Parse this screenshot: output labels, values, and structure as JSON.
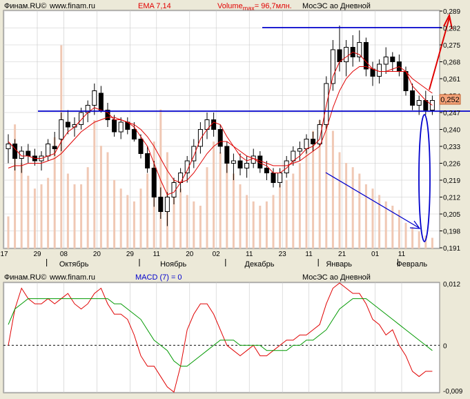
{
  "header": {
    "source": "Финам.RU©",
    "site": "www.finam.ru",
    "ema": "EMA 7,14",
    "volume_prefix": "Volume",
    "volume_sub": "max",
    "volume_suffix": "= 96,7млн.",
    "instrument": "МосЭС ао Дневной"
  },
  "macd_header": {
    "source": "Финам.RU©",
    "site": "www.finam.ru",
    "macd": "MACD (7) = 0",
    "instrument": "МосЭС ао Дневной"
  },
  "colors": {
    "background": "#ffffff",
    "frame": "#ece9d8",
    "grid": "#c8c8c8",
    "candle_up": "#ffffff",
    "candle_down": "#000000",
    "ema": "#e00000",
    "volume": "#f0c8b4",
    "annotation_blue": "#0000cc",
    "annotation_red": "#e00000",
    "macd_line": "#e00000",
    "signal_line": "#009900",
    "price_tag": "#f4a37a"
  },
  "chart_data": [
    {
      "type": "candlestick",
      "title": "МосЭС ао Дневной",
      "ylim": [
        0.191,
        0.289
      ],
      "y_ticks": [
        "0,289",
        "0,282",
        "0,275",
        "0,268",
        "0,261",
        "0,254",
        "0,247",
        "0,240",
        "0,233",
        "0,226",
        "0,219",
        "0,212",
        "0,205",
        "0,198",
        "0,191"
      ],
      "x_day_ticks": [
        "17",
        "29",
        "08",
        "20",
        "29",
        "11",
        "20",
        "02",
        "11",
        "23",
        "11",
        "21",
        "01",
        "11"
      ],
      "x_month_labels": [
        "Октябрь",
        "Ноябрь",
        "Декабрь",
        "Январь",
        "Февраль"
      ],
      "last_price": "0,252",
      "series": [
        {
          "name": "EMA 7",
          "values": [
            0.235,
            0.232,
            0.229,
            0.229,
            0.228,
            0.228,
            0.229,
            0.23,
            0.235,
            0.239,
            0.241,
            0.244,
            0.247,
            0.249,
            0.248,
            0.247,
            0.244,
            0.244,
            0.243,
            0.241,
            0.237,
            0.233,
            0.226,
            0.219,
            0.213,
            0.214,
            0.218,
            0.223,
            0.229,
            0.236,
            0.24,
            0.243,
            0.242,
            0.237,
            0.233,
            0.229,
            0.227,
            0.228,
            0.226,
            0.225,
            0.222,
            0.222,
            0.224,
            0.227,
            0.229,
            0.232,
            0.233,
            0.236,
            0.25,
            0.262,
            0.268,
            0.27,
            0.272,
            0.271,
            0.268,
            0.265,
            0.264,
            0.264,
            0.265,
            0.266,
            0.264,
            0.258,
            0.255,
            0.252,
            0.25
          ]
        },
        {
          "name": "EMA 14",
          "values": [
            0.224,
            0.225,
            0.225,
            0.226,
            0.226,
            0.226,
            0.227,
            0.228,
            0.23,
            0.233,
            0.236,
            0.239,
            0.241,
            0.243,
            0.244,
            0.245,
            0.245,
            0.244,
            0.243,
            0.242,
            0.24,
            0.237,
            0.233,
            0.228,
            0.223,
            0.219,
            0.218,
            0.219,
            0.222,
            0.226,
            0.23,
            0.233,
            0.235,
            0.235,
            0.233,
            0.231,
            0.229,
            0.228,
            0.227,
            0.226,
            0.225,
            0.225,
            0.225,
            0.226,
            0.227,
            0.229,
            0.231,
            0.233,
            0.24,
            0.249,
            0.256,
            0.261,
            0.264,
            0.266,
            0.266,
            0.265,
            0.264,
            0.264,
            0.264,
            0.264,
            0.264,
            0.261,
            0.259,
            0.257,
            0.255
          ]
        }
      ],
      "candles": [
        [
          0.232,
          0.238,
          0.226,
          0.234
        ],
        [
          0.234,
          0.236,
          0.223,
          0.228
        ],
        [
          0.228,
          0.233,
          0.222,
          0.231
        ],
        [
          0.231,
          0.234,
          0.226,
          0.229
        ],
        [
          0.229,
          0.232,
          0.225,
          0.227
        ],
        [
          0.227,
          0.231,
          0.223,
          0.229
        ],
        [
          0.229,
          0.236,
          0.227,
          0.234
        ],
        [
          0.233,
          0.239,
          0.229,
          0.232
        ],
        [
          0.236,
          0.247,
          0.231,
          0.244
        ],
        [
          0.243,
          0.248,
          0.238,
          0.241
        ],
        [
          0.241,
          0.245,
          0.237,
          0.242
        ],
        [
          0.242,
          0.249,
          0.24,
          0.247
        ],
        [
          0.247,
          0.252,
          0.243,
          0.25
        ],
        [
          0.25,
          0.259,
          0.246,
          0.256
        ],
        [
          0.255,
          0.258,
          0.247,
          0.248
        ],
        [
          0.248,
          0.251,
          0.241,
          0.244
        ],
        [
          0.244,
          0.246,
          0.237,
          0.239
        ],
        [
          0.239,
          0.245,
          0.236,
          0.243
        ],
        [
          0.243,
          0.245,
          0.238,
          0.24
        ],
        [
          0.24,
          0.243,
          0.235,
          0.236
        ],
        [
          0.236,
          0.238,
          0.228,
          0.23
        ],
        [
          0.23,
          0.233,
          0.222,
          0.224
        ],
        [
          0.224,
          0.227,
          0.208,
          0.212
        ],
        [
          0.212,
          0.216,
          0.203,
          0.206
        ],
        [
          0.206,
          0.214,
          0.2,
          0.212
        ],
        [
          0.212,
          0.22,
          0.209,
          0.218
        ],
        [
          0.218,
          0.224,
          0.214,
          0.222
        ],
        [
          0.222,
          0.229,
          0.218,
          0.227
        ],
        [
          0.227,
          0.236,
          0.224,
          0.233
        ],
        [
          0.233,
          0.243,
          0.23,
          0.24
        ],
        [
          0.24,
          0.247,
          0.236,
          0.244
        ],
        [
          0.244,
          0.247,
          0.237,
          0.24
        ],
        [
          0.24,
          0.242,
          0.23,
          0.233
        ],
        [
          0.233,
          0.235,
          0.222,
          0.226
        ],
        [
          0.226,
          0.23,
          0.219,
          0.227
        ],
        [
          0.227,
          0.23,
          0.221,
          0.224
        ],
        [
          0.224,
          0.229,
          0.22,
          0.226
        ],
        [
          0.226,
          0.232,
          0.224,
          0.229
        ],
        [
          0.229,
          0.231,
          0.222,
          0.224
        ],
        [
          0.224,
          0.227,
          0.219,
          0.222
        ],
        [
          0.222,
          0.224,
          0.216,
          0.218
        ],
        [
          0.218,
          0.224,
          0.216,
          0.222
        ],
        [
          0.222,
          0.229,
          0.22,
          0.227
        ],
        [
          0.227,
          0.233,
          0.225,
          0.231
        ],
        [
          0.231,
          0.235,
          0.227,
          0.232
        ],
        [
          0.232,
          0.238,
          0.23,
          0.236
        ],
        [
          0.236,
          0.239,
          0.231,
          0.234
        ],
        [
          0.234,
          0.244,
          0.233,
          0.242
        ],
        [
          0.242,
          0.262,
          0.24,
          0.259
        ],
        [
          0.259,
          0.277,
          0.256,
          0.273
        ],
        [
          0.273,
          0.283,
          0.264,
          0.268
        ],
        [
          0.268,
          0.277,
          0.262,
          0.274
        ],
        [
          0.274,
          0.279,
          0.266,
          0.27
        ],
        [
          0.27,
          0.281,
          0.268,
          0.276
        ],
        [
          0.276,
          0.278,
          0.262,
          0.265
        ],
        [
          0.265,
          0.268,
          0.258,
          0.262
        ],
        [
          0.262,
          0.269,
          0.259,
          0.267
        ],
        [
          0.267,
          0.274,
          0.263,
          0.27
        ],
        [
          0.27,
          0.272,
          0.264,
          0.268
        ],
        [
          0.268,
          0.271,
          0.262,
          0.264
        ],
        [
          0.264,
          0.266,
          0.254,
          0.256
        ],
        [
          0.256,
          0.259,
          0.248,
          0.25
        ],
        [
          0.25,
          0.254,
          0.246,
          0.252
        ],
        [
          0.252,
          0.256,
          0.246,
          0.248
        ],
        [
          0.248,
          0.254,
          0.246,
          0.252
        ]
      ],
      "volume_max": "96,7млн.",
      "volume_fraction": [
        0.15,
        0.58,
        0.4,
        0.34,
        0.28,
        0.3,
        0.33,
        0.52,
        0.95,
        0.35,
        0.3,
        0.3,
        0.38,
        0.6,
        0.48,
        0.45,
        0.32,
        0.28,
        0.25,
        0.22,
        0.28,
        0.35,
        0.5,
        0.65,
        0.45,
        0.32,
        0.28,
        0.25,
        0.22,
        0.2,
        0.38,
        0.5,
        0.45,
        0.4,
        0.35,
        0.3,
        0.25,
        0.22,
        0.2,
        0.22,
        0.25,
        0.3,
        0.32,
        0.35,
        0.4,
        0.48,
        0.55,
        0.6,
        0.7,
        0.55,
        0.45,
        0.4,
        0.38,
        0.35,
        0.3,
        0.28,
        0.25,
        0.22,
        0.2,
        0.18,
        0.12,
        0.1,
        0.08,
        0.06,
        0.05
      ]
    },
    {
      "type": "line",
      "title": "MACD (7) = 0",
      "ylim": [
        -0.009,
        0.012
      ],
      "y_ticks": [
        "0,012",
        "0",
        "-0,009"
      ],
      "series": [
        {
          "name": "MACD (7)",
          "values": [
            0.0,
            0.007,
            0.011,
            0.009,
            0.008,
            0.008,
            0.009,
            0.008,
            0.009,
            0.01,
            0.008,
            0.007,
            0.008,
            0.01,
            0.011,
            0.008,
            0.006,
            0.006,
            0.005,
            0.002,
            -0.002,
            -0.004,
            -0.004,
            -0.006,
            -0.008,
            -0.009,
            -0.004,
            0.003,
            0.006,
            0.008,
            0.008,
            0.006,
            0.003,
            0.0,
            -0.001,
            -0.002,
            -0.001,
            0.0,
            -0.002,
            -0.002,
            -0.001,
            0.0,
            0.001,
            0.001,
            0.002,
            0.002,
            0.003,
            0.004,
            0.008,
            0.011,
            0.012,
            0.011,
            0.01,
            0.01,
            0.008,
            0.005,
            0.004,
            0.002,
            0.003,
            0.0,
            -0.002,
            -0.005,
            -0.006,
            -0.005,
            -0.005
          ]
        },
        {
          "name": "Signal",
          "values": [
            0.004,
            0.007,
            0.008,
            0.009,
            0.009,
            0.009,
            0.009,
            0.009,
            0.009,
            0.009,
            0.009,
            0.009,
            0.009,
            0.009,
            0.009,
            0.009,
            0.008,
            0.008,
            0.007,
            0.006,
            0.005,
            0.003,
            0.001,
            0.0,
            -0.001,
            -0.003,
            -0.004,
            -0.004,
            -0.003,
            -0.002,
            -0.001,
            0.0,
            0.001,
            0.001,
            0.001,
            0.0,
            0.0,
            0.0,
            0.0,
            -0.001,
            -0.001,
            -0.001,
            -0.001,
            0.0,
            0.0,
            0.001,
            0.001,
            0.002,
            0.003,
            0.005,
            0.007,
            0.008,
            0.009,
            0.009,
            0.009,
            0.008,
            0.007,
            0.006,
            0.005,
            0.004,
            0.003,
            0.002,
            0.001,
            0.0,
            -0.001
          ]
        }
      ]
    }
  ]
}
